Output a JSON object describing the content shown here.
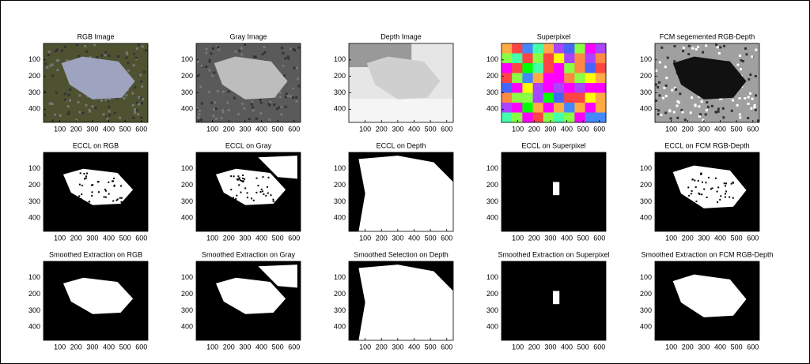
{
  "panels": [
    {
      "title": "RGB Image"
    },
    {
      "title": "Gray Image"
    },
    {
      "title": "Depth Image"
    },
    {
      "title": "Superpixel"
    },
    {
      "title": "FCM segemented RGB-Depth"
    },
    {
      "title": "ECCL on RGB"
    },
    {
      "title": "ECCL on Gray"
    },
    {
      "title": "ECCL on Depth"
    },
    {
      "title": "ECCL on Superpixel"
    },
    {
      "title": "ECCL on FCM RGB-Depth"
    },
    {
      "title": "Smoothed Extraction on RGB"
    },
    {
      "title": "Smoothed Extraction on Gray"
    },
    {
      "title": "Smoothed Selection on Depth"
    },
    {
      "title": "Smoothed Extraction on Superpixel"
    },
    {
      "title": "Smoothed Extraction on FCM RGB-Depth"
    }
  ],
  "xlim": [
    0,
    640
  ],
  "ylim": [
    0,
    480
  ],
  "xticks": [
    100,
    200,
    300,
    400,
    500,
    600
  ],
  "yticks": [
    100,
    200,
    300,
    400
  ]
}
